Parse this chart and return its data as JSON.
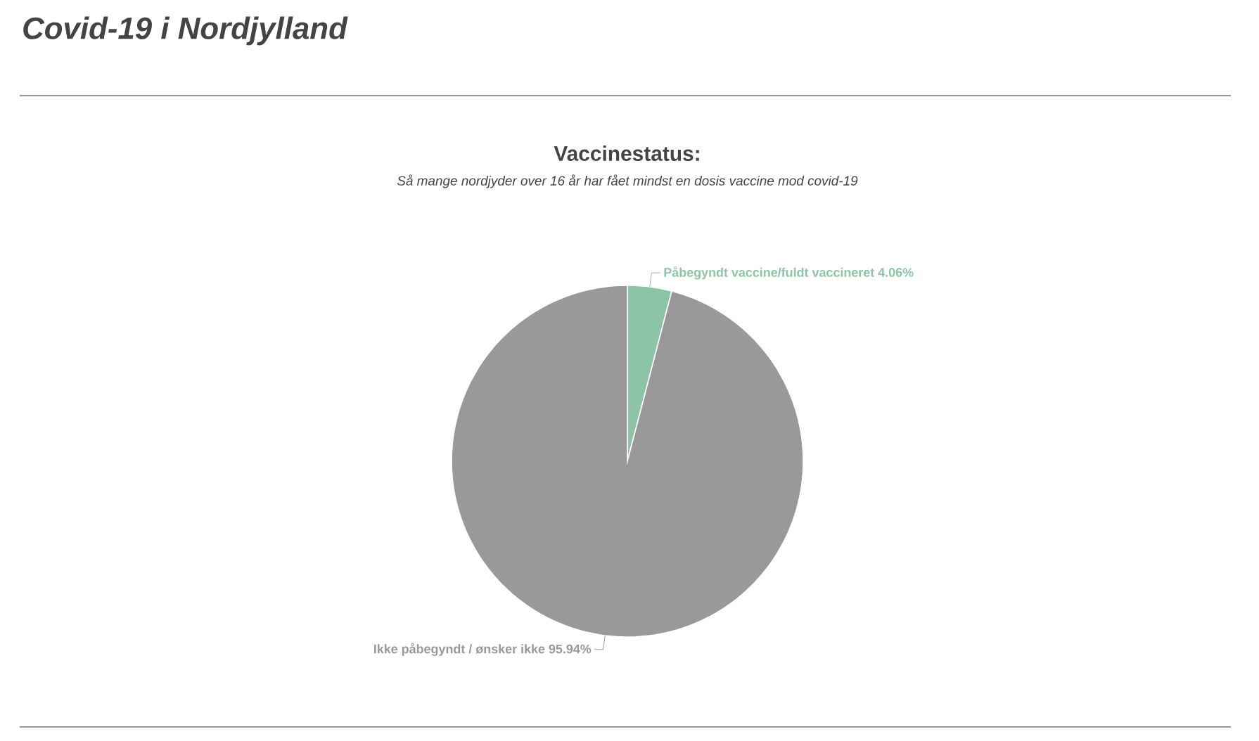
{
  "chart_data": {
    "type": "pie",
    "title": "Vaccinestatus:",
    "subtitle": "Så mange nordjyder over 16 år har fået mindst en dosis vaccine mod covid-19",
    "annotations": [
      "Covid-19 i Nordjylland"
    ],
    "categories": [
      "Påbegyndt vaccine/fuldt vaccineret",
      "Ikke påbegyndt / ønsker ikke"
    ],
    "values": [
      4.06,
      95.94
    ],
    "value_labels": [
      "4.06%",
      "95.94%"
    ],
    "colors": [
      "#8dc3a7",
      "#999999"
    ]
  }
}
